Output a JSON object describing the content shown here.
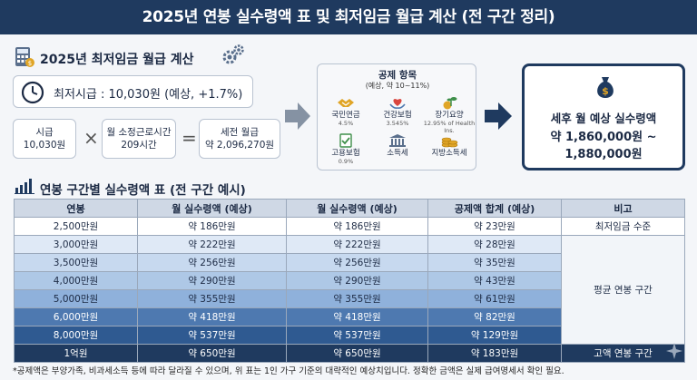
{
  "title": "2025년 연봉 실수령액 표 및 최저임금 월급 계산 (전 구간 정리)",
  "min_wage_section": {
    "title": "2025년 최저임금 월급 계산",
    "hourly_wage_label": "최저시급 : 10,030원 (예상, +1.7%)",
    "calc": {
      "hourly_label": "시급",
      "hourly_value": "10,030원",
      "multiply": "×",
      "hours_label": "월 소정근로시간",
      "hours_value": "209시간",
      "equals": "=",
      "gross_label": "세전 월급",
      "gross_value": "약 2,096,270원"
    }
  },
  "deductions": {
    "title": "공제 항목",
    "subtitle": "(예상, 약 10~11%)",
    "items": [
      {
        "label": "국민연금",
        "rate": "4.5%",
        "icon": "handshake-icon"
      },
      {
        "label": "건강보험",
        "rate": "3.545%",
        "icon": "heart-hands-icon"
      },
      {
        "label": "장기요양",
        "rate": "12.95% of Health Ins.",
        "icon": "plant-money-icon"
      },
      {
        "label": "고용보험",
        "rate": "0.9%",
        "icon": "checklist-icon"
      },
      {
        "label": "소득세",
        "rate": "",
        "icon": "bank-icon"
      },
      {
        "label": "지방소득세",
        "rate": "",
        "icon": "coins-icon"
      }
    ]
  },
  "net_pay": {
    "label": "세후 월 예상 실수령액",
    "value_line1": "약 1,860,000원 ~",
    "value_line2": "1,880,000원"
  },
  "table_section": {
    "title": "연봉 구간별 실수령액 표 (전 구간 예시)",
    "headers": [
      "연봉",
      "월 실수령액 (예상)",
      "월 실수령액 (예상)",
      "공제액 합계 (예상)",
      "비고"
    ],
    "rows": [
      {
        "salary": "2,500만원",
        "net1": "약 186만원",
        "net2": "약 186만원",
        "deduction": "약 23만원"
      },
      {
        "salary": "3,000만원",
        "net1": "약 222만원",
        "net2": "약 222만원",
        "deduction": "약 28만원"
      },
      {
        "salary": "3,500만원",
        "net1": "약 256만원",
        "net2": "약 256만원",
        "deduction": "약 35만원"
      },
      {
        "salary": "4,000만원",
        "net1": "약 290만원",
        "net2": "약 290만원",
        "deduction": "약 43만원"
      },
      {
        "salary": "5,000만원",
        "net1": "약 355만원",
        "net2": "약 355만원",
        "deduction": "약 61만원"
      },
      {
        "salary": "6,000만원",
        "net1": "약 418만원",
        "net2": "약 418만원",
        "deduction": "약 82만원"
      },
      {
        "salary": "8,000만원",
        "net1": "약 537만원",
        "net2": "약 537만원",
        "deduction": "약 129만원"
      },
      {
        "salary": "1억원",
        "net1": "약 650만원",
        "net2": "약 650만원",
        "deduction": "약 183만원"
      }
    ],
    "notes": {
      "min_wage": "최저임금 수준",
      "average": "평균 연봉 구간",
      "high": "고액 연봉 구간"
    }
  },
  "footnote": "*공제액은 부양가족, 비과세소득 등에 따라 달라질 수 있으며, 위 표는 1인 가구 기준의 대략적인 예상치입니다. 정확한 금액은 실제 급여명세서 확인 필요."
}
